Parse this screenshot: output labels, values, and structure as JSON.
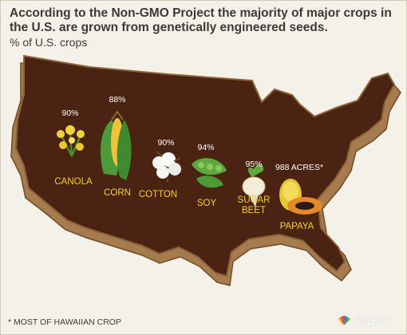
{
  "header": {
    "title": "According to the Non-GMO Project the majority of major crops in the U.S. are grown from genetically engineered seeds.",
    "subtitle": "% of U.S. crops"
  },
  "footnote": "* MOST OF HAWAIIAN CROP",
  "brand": {
    "logo_text": "CNBC"
  },
  "colors": {
    "map_fill": "#4a2312",
    "map_edge": "#a67c4e",
    "label": "#f2d33a",
    "value": "#ffffff",
    "background": "#f4f1e9"
  },
  "chart_data": {
    "type": "table",
    "title": "According to the Non-GMO Project the majority of major crops in the U.S. are grown from genetically engineered seeds.",
    "subtitle": "% of U.S. crops",
    "categories": [
      "CANOLA",
      "CORN",
      "COTTON",
      "SOY",
      "SUGAR BEET",
      "PAPAYA"
    ],
    "value_labels": [
      "90%",
      "88%",
      "90%",
      "94%",
      "95%",
      "988 ACRES*"
    ],
    "values": [
      90,
      88,
      90,
      94,
      95,
      null
    ],
    "icons": [
      "canola-flower-icon",
      "corn-cob-icon",
      "cotton-boll-icon",
      "soybean-pod-icon",
      "sugar-beet-icon",
      "papaya-icon"
    ]
  }
}
